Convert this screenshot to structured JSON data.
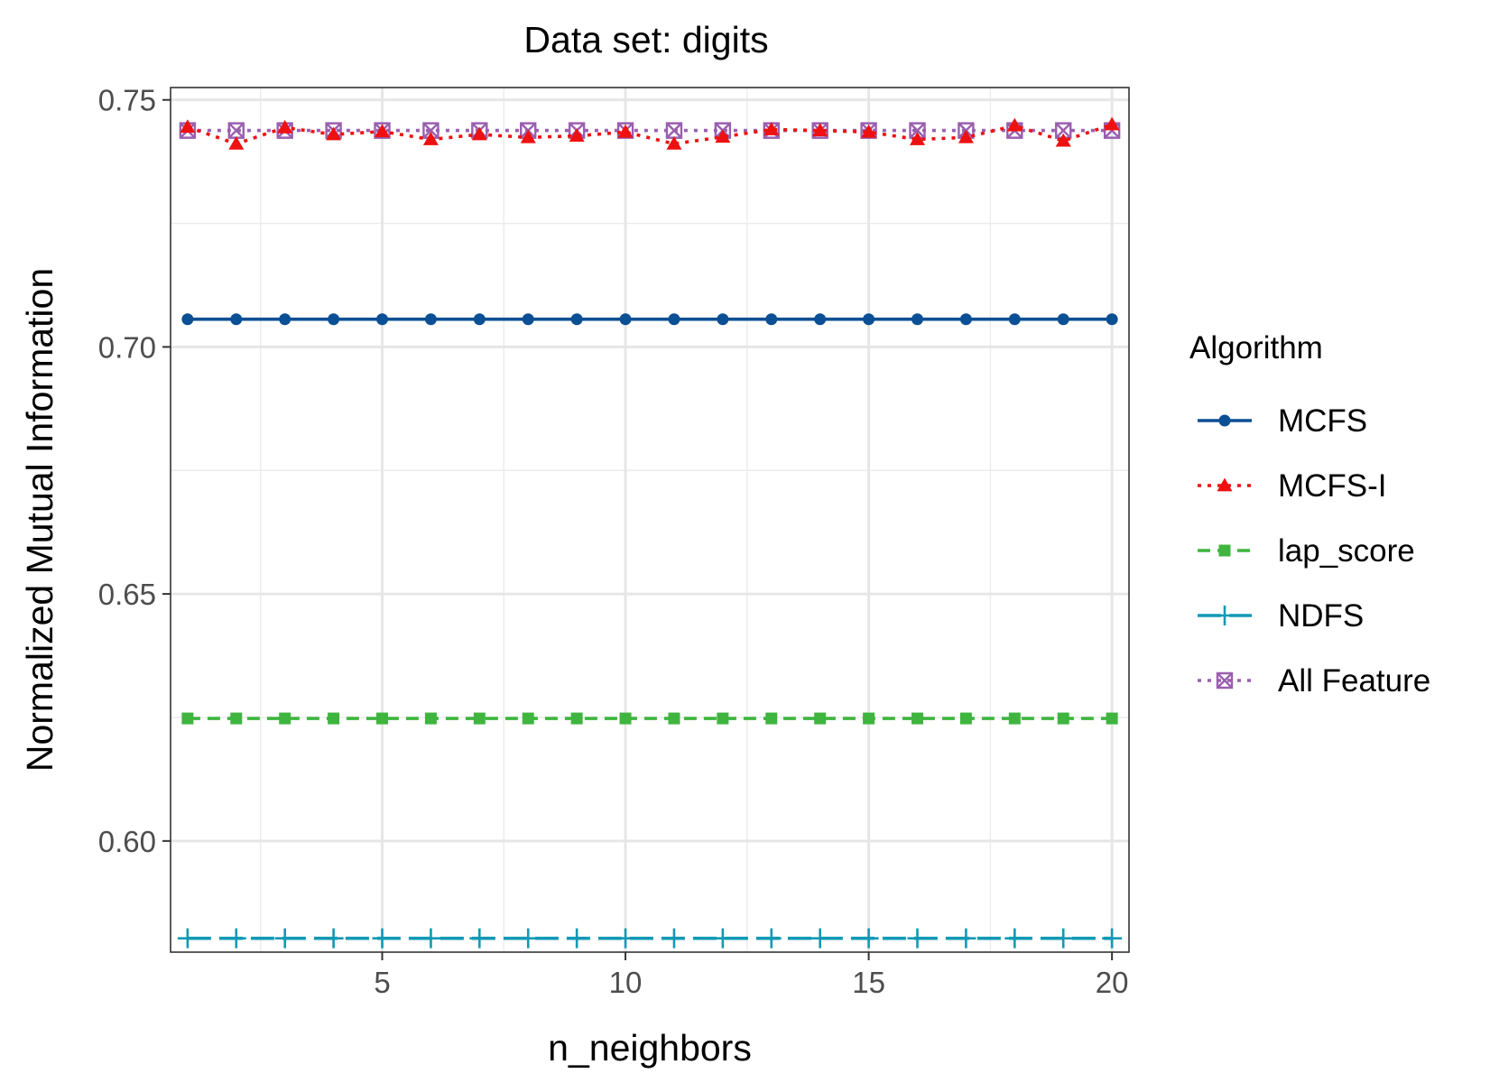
{
  "chart_data": {
    "type": "line",
    "title": "Data set: digits",
    "xlabel": "n_neighbors",
    "ylabel": "Normalized Mutual Information",
    "xlim": [
      0.65,
      20.35
    ],
    "ylim": [
      0.5775,
      0.7525
    ],
    "xticks": [
      5,
      10,
      15,
      20
    ],
    "yticks": [
      0.6,
      0.65,
      0.7,
      0.75
    ],
    "ytick_labels": [
      "0.60",
      "0.65",
      "0.70",
      "0.75"
    ],
    "grid": true,
    "legend_title": "Algorithm",
    "legend_position": "right",
    "x": [
      1,
      2,
      3,
      4,
      5,
      6,
      7,
      8,
      9,
      10,
      11,
      12,
      13,
      14,
      15,
      16,
      17,
      18,
      19,
      20
    ],
    "series": [
      {
        "name": "MCFS",
        "color": "#0b4f94",
        "line_style": "solid",
        "marker": "circle",
        "values": [
          0.7056,
          0.7056,
          0.7056,
          0.7056,
          0.7056,
          0.7056,
          0.7056,
          0.7056,
          0.7056,
          0.7056,
          0.7056,
          0.7056,
          0.7056,
          0.7056,
          0.7056,
          0.7056,
          0.7056,
          0.7056,
          0.7056,
          0.7056
        ]
      },
      {
        "name": "MCFS-I",
        "color": "#ee1111",
        "line_style": "dotted",
        "marker": "triangle",
        "values": [
          0.7445,
          0.7411,
          0.7444,
          0.743,
          0.7436,
          0.742,
          0.743,
          0.7424,
          0.7427,
          0.7435,
          0.7411,
          0.7425,
          0.744,
          0.7438,
          0.7435,
          0.742,
          0.7424,
          0.7448,
          0.7417,
          0.745
        ]
      },
      {
        "name": "lap_score",
        "color": "#3fb53f",
        "line_style": "dashed",
        "marker": "square",
        "values": [
          0.6248,
          0.6248,
          0.6248,
          0.6248,
          0.6248,
          0.6248,
          0.6248,
          0.6248,
          0.6248,
          0.6248,
          0.6248,
          0.6248,
          0.6248,
          0.6248,
          0.6248,
          0.6248,
          0.6248,
          0.6248,
          0.6248,
          0.6248
        ]
      },
      {
        "name": "NDFS",
        "color": "#1199b5",
        "line_style": "longdash",
        "marker": "plus",
        "values": [
          0.5803,
          0.5803,
          0.5803,
          0.5803,
          0.5803,
          0.5803,
          0.5803,
          0.5803,
          0.5803,
          0.5803,
          0.5803,
          0.5803,
          0.5803,
          0.5803,
          0.5803,
          0.5803,
          0.5803,
          0.5803,
          0.5803,
          0.5803
        ]
      },
      {
        "name": "All Feature",
        "color": "#9a5fb0",
        "line_style": "dotted",
        "marker": "square-x",
        "values": [
          0.7438,
          0.7438,
          0.7438,
          0.7438,
          0.7438,
          0.7438,
          0.7438,
          0.7438,
          0.7438,
          0.7438,
          0.7438,
          0.7438,
          0.7438,
          0.7438,
          0.7438,
          0.7438,
          0.7438,
          0.7438,
          0.7438,
          0.7438
        ]
      }
    ]
  }
}
